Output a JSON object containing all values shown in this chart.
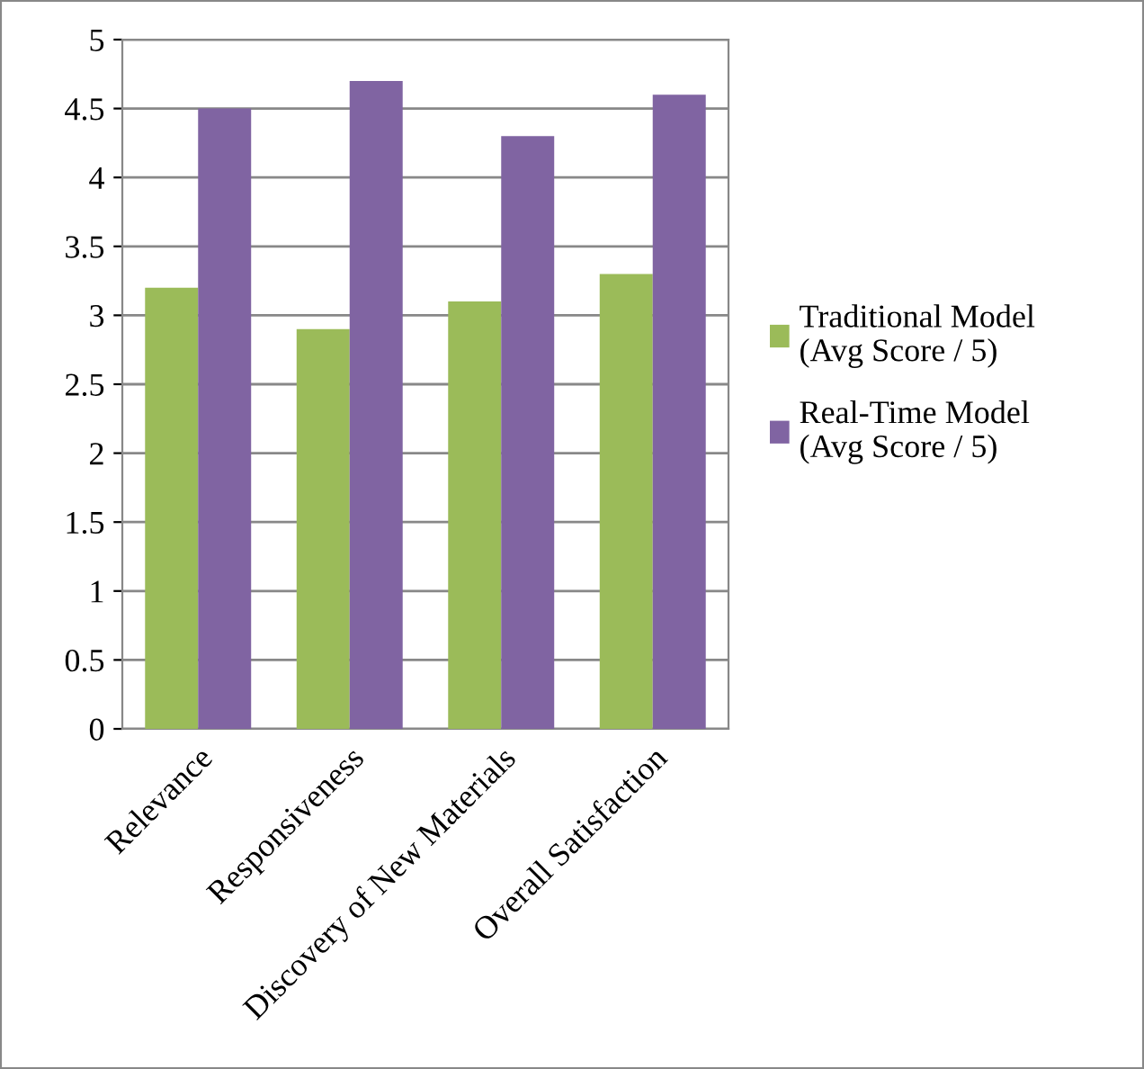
{
  "chart_data": {
    "type": "bar",
    "categories": [
      "Relevance",
      "Responsiveness",
      "Discovery of New Materials",
      "Overall Satisfaction"
    ],
    "series": [
      {
        "name": "Traditional Model\n(Avg Score / 5)",
        "color": "#9bbb59",
        "values": [
          3.2,
          2.9,
          3.1,
          3.3
        ]
      },
      {
        "name": "Real-Time Model\n(Avg Score / 5)",
        "color": "#8064a2",
        "values": [
          4.5,
          4.7,
          4.3,
          4.6
        ]
      }
    ],
    "ylim": [
      0,
      5
    ],
    "yticks": [
      0,
      0.5,
      1,
      1.5,
      2,
      2.5,
      3,
      3.5,
      4,
      4.5,
      5
    ],
    "grid": "y",
    "legend": "right"
  }
}
